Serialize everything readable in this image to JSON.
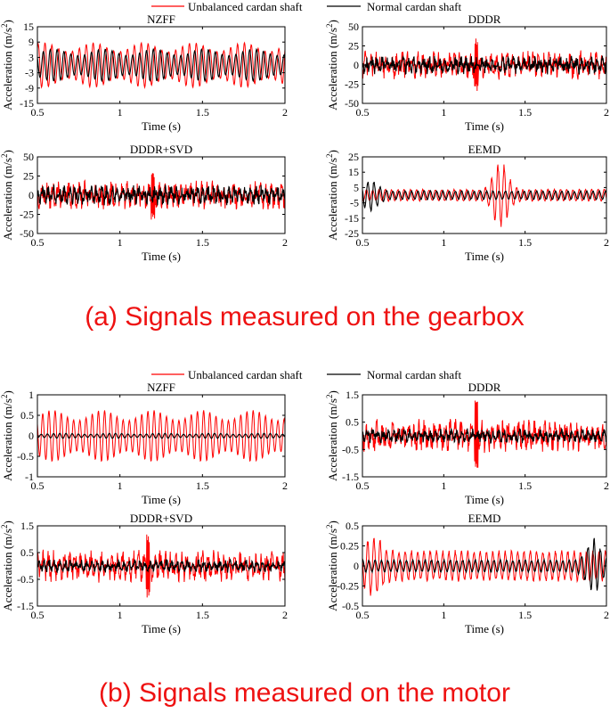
{
  "legend": {
    "unbalanced_label": "Unbalanced cardan shaft",
    "normal_label": "Normal cardan shaft",
    "unbalanced_color": "#ff0000",
    "normal_color": "#000000"
  },
  "captions": {
    "gearbox": "(a) Signals measured on the gearbox",
    "motor": "(b) Signals measured on the motor",
    "color": "#ee1111"
  },
  "ylabel_prefix": "Acceleration (m/s",
  "ylabel_sup": "2",
  "ylabel_suffix": ")",
  "chart_data": [
    {
      "group": "gearbox",
      "type": "line",
      "title": "NZFF",
      "xlabel": "Time (s)",
      "ylabel": "Acceleration (m/s^2)",
      "xlim": [
        0.5,
        2
      ],
      "ylim": [
        -15,
        15
      ],
      "xticks": [
        0.5,
        1,
        1.5,
        2
      ],
      "yticks": [
        -15,
        -9,
        -3,
        3,
        9,
        15
      ],
      "series": [
        {
          "name": "Unbalanced cardan shaft",
          "amplitude": 7,
          "cycles": 36,
          "style": "sine"
        },
        {
          "name": "Normal cardan shaft",
          "amplitude": 5,
          "cycles": 36,
          "style": "sine"
        }
      ]
    },
    {
      "group": "gearbox",
      "type": "line",
      "title": "DDDR",
      "xlabel": "Time (s)",
      "ylabel": "Acceleration (m/s^2)",
      "xlim": [
        0.5,
        2
      ],
      "ylim": [
        -50,
        50
      ],
      "xticks": [
        0.5,
        1,
        1.5,
        2
      ],
      "yticks": [
        -50,
        -25,
        0,
        25,
        50
      ],
      "series": [
        {
          "name": "Unbalanced cardan shaft",
          "amplitude": 14,
          "peak": 35,
          "peak_at": 1.2,
          "style": "noise"
        },
        {
          "name": "Normal cardan shaft",
          "amplitude": 9,
          "style": "noise"
        }
      ]
    },
    {
      "group": "gearbox",
      "type": "line",
      "title": "DDDR+SVD",
      "xlabel": "Time (s)",
      "ylabel": "Acceleration (m/s^2)",
      "xlim": [
        0.5,
        2
      ],
      "ylim": [
        -50,
        50
      ],
      "xticks": [
        0.5,
        1,
        1.5,
        2
      ],
      "yticks": [
        -50,
        -25,
        0,
        25,
        50
      ],
      "series": [
        {
          "name": "Unbalanced cardan shaft",
          "amplitude": 14,
          "peak": 32,
          "peak_at": 1.2,
          "style": "noise"
        },
        {
          "name": "Normal cardan shaft",
          "amplitude": 10,
          "style": "noise"
        }
      ]
    },
    {
      "group": "gearbox",
      "type": "line",
      "title": "EEMD",
      "xlabel": "Time (s)",
      "ylabel": "Acceleration (m/s^2)",
      "xlim": [
        0.5,
        2
      ],
      "ylim": [
        -25,
        25
      ],
      "xticks": [
        0.5,
        1,
        1.5,
        2
      ],
      "yticks": [
        -25,
        -15,
        -5,
        5,
        15,
        25
      ],
      "series": [
        {
          "name": "Unbalanced cardan shaft",
          "amplitude": 4,
          "peak": 23,
          "peak_at": 1.35,
          "style": "burst"
        },
        {
          "name": "Normal cardan shaft",
          "amplitude": 3,
          "peak": 11,
          "peak_at": 0.55,
          "style": "burst"
        }
      ]
    },
    {
      "group": "motor",
      "type": "line",
      "title": "NZFF",
      "xlabel": "Time (s)",
      "ylabel": "Acceleration (m/s^2)",
      "xlim": [
        0.5,
        2
      ],
      "ylim": [
        -1,
        1
      ],
      "xticks": [
        0.5,
        1,
        1.5,
        2
      ],
      "yticks": [
        -1,
        -0.5,
        0,
        0.5,
        1
      ],
      "series": [
        {
          "name": "Unbalanced cardan shaft",
          "amplitude": 0.5,
          "cycles": 40,
          "style": "sine"
        },
        {
          "name": "Normal cardan shaft",
          "amplitude": 0.05,
          "cycles": 40,
          "style": "sine"
        }
      ]
    },
    {
      "group": "motor",
      "type": "line",
      "title": "DDDR",
      "xlabel": "Time (s)",
      "ylabel": "Acceleration (m/s^2)",
      "xlim": [
        0.5,
        2
      ],
      "ylim": [
        -1.5,
        1.5
      ],
      "xticks": [
        0.5,
        1,
        1.5,
        2
      ],
      "yticks": [
        -1.5,
        -0.5,
        0.5,
        1.5
      ],
      "series": [
        {
          "name": "Unbalanced cardan shaft",
          "amplitude": 0.45,
          "peak": 1.3,
          "peak_at": 1.2,
          "style": "noise"
        },
        {
          "name": "Normal cardan shaft",
          "amplitude": 0.2,
          "style": "noise"
        }
      ]
    },
    {
      "group": "motor",
      "type": "line",
      "title": "DDDR+SVD",
      "xlabel": "Time (s)",
      "ylabel": "Acceleration (m/s^2)",
      "xlim": [
        0.5,
        2
      ],
      "ylim": [
        -1.5,
        1.5
      ],
      "xticks": [
        0.5,
        1,
        1.5,
        2
      ],
      "yticks": [
        -1.5,
        -0.5,
        0.5,
        1.5
      ],
      "series": [
        {
          "name": "Unbalanced cardan shaft",
          "amplitude": 0.45,
          "peak": 1.2,
          "peak_at": 1.17,
          "style": "noise"
        },
        {
          "name": "Normal cardan shaft",
          "amplitude": 0.18,
          "style": "noise"
        }
      ]
    },
    {
      "group": "motor",
      "type": "line",
      "title": "EEMD",
      "xlabel": "Time (s)",
      "ylabel": "Acceleration (m/s^2)",
      "xlim": [
        0.5,
        2
      ],
      "ylim": [
        -0.5,
        0.5
      ],
      "xticks": [
        0.5,
        1,
        1.5,
        2
      ],
      "yticks": [
        -0.5,
        -0.25,
        0,
        0.25,
        0.5
      ],
      "series": [
        {
          "name": "Unbalanced cardan shaft",
          "amplitude": 0.2,
          "peak": 0.42,
          "peak_at": 0.57,
          "style": "burst"
        },
        {
          "name": "Normal cardan shaft",
          "amplitude": 0.08,
          "peak": 0.35,
          "peak_at": 1.92,
          "style": "burst"
        }
      ]
    }
  ]
}
